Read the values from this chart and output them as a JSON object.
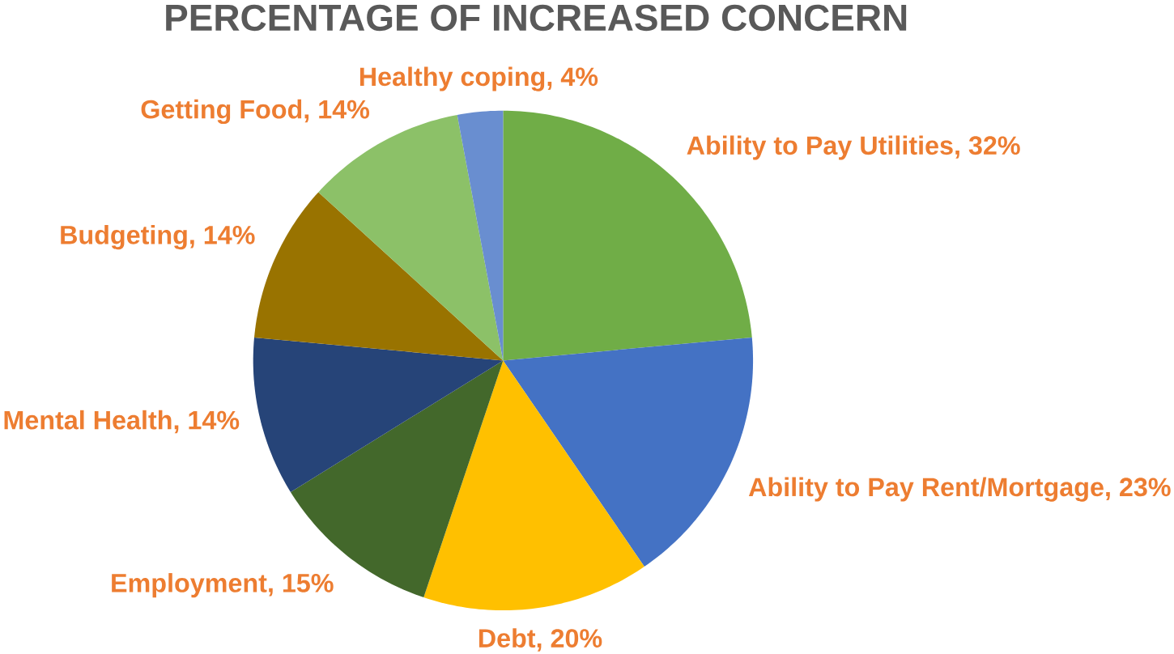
{
  "chart_data": {
    "type": "pie",
    "title": "PERCENTAGE OF INCREASED CONCERN",
    "categories": [
      "Ability to Pay Utilities",
      "Ability to Pay Rent/Mortgage",
      "Debt",
      "Employment",
      "Mental Health",
      "Budgeting",
      "Getting Food",
      "Healthy coping"
    ],
    "values": [
      32,
      23,
      20,
      15,
      14,
      14,
      14,
      4
    ],
    "value_labels": [
      ", 32%",
      ", 23%",
      ", 20%",
      ", 15%",
      ", 14%",
      ", 14%",
      ", 14%",
      ", 4%"
    ],
    "colors": [
      "#70ad47",
      "#4472c4",
      "#ffc000",
      "#43682b",
      "#264478",
      "#997300",
      "#8cc168",
      "#698ed0"
    ]
  }
}
